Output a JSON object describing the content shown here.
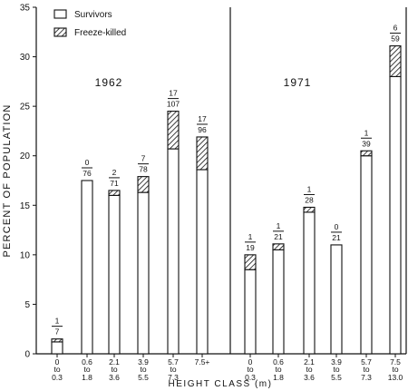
{
  "chart_data": {
    "type": "bar",
    "stacked": true,
    "xlabel": "HEIGHT CLASS (m)",
    "ylabel": "PERCENT OF POPULATION",
    "ylim": [
      0,
      35
    ],
    "yticks": [
      0,
      5,
      10,
      15,
      20,
      25,
      30,
      35
    ],
    "legend": {
      "placement": "top-left",
      "entries": [
        {
          "name": "Survivors",
          "pattern": "open"
        },
        {
          "name": "Freeze-killed",
          "pattern": "hatched"
        }
      ]
    },
    "panels": [
      {
        "title": "1962",
        "categories": [
          {
            "top": "0",
            "mid": "to",
            "bot": "0.3"
          },
          {
            "top": "0.6",
            "mid": "to",
            "bot": "1.8"
          },
          {
            "top": "2.1",
            "mid": "to",
            "bot": "3.6"
          },
          {
            "top": "3.9",
            "mid": "to",
            "bot": "5.5"
          },
          {
            "top": "5.7",
            "mid": "to",
            "bot": "7.3"
          },
          {
            "top": "7.5+",
            "mid": "",
            "bot": ""
          }
        ],
        "series": [
          {
            "name": "Survivors",
            "values": [
              1.2,
              17.5,
              16.0,
              16.3,
              20.7,
              18.6
            ]
          },
          {
            "name": "Freeze-killed",
            "values": [
              0.3,
              0.0,
              0.5,
              1.6,
              3.8,
              3.3
            ]
          }
        ],
        "labels": [
          {
            "num": "1",
            "den": "7"
          },
          {
            "num": "0",
            "den": "76"
          },
          {
            "num": "2",
            "den": "71"
          },
          {
            "num": "7",
            "den": "78"
          },
          {
            "num": "17",
            "den": "107"
          },
          {
            "num": "17",
            "den": "96"
          }
        ]
      },
      {
        "title": "1971",
        "categories": [
          {
            "top": "0",
            "mid": "to",
            "bot": "0.3"
          },
          {
            "top": "0.6",
            "mid": "to",
            "bot": "1.8"
          },
          {
            "top": "2.1",
            "mid": "to",
            "bot": "3.6"
          },
          {
            "top": "3.9",
            "mid": "to",
            "bot": "5.5"
          },
          {
            "top": "5.7",
            "mid": "to",
            "bot": "7.3"
          },
          {
            "top": "7.5",
            "mid": "to",
            "bot": "13.0"
          }
        ],
        "series": [
          {
            "name": "Survivors",
            "values": [
              8.5,
              10.5,
              14.3,
              11.0,
              20.0,
              28.0
            ]
          },
          {
            "name": "Freeze-killed",
            "values": [
              1.5,
              0.6,
              0.5,
              0.0,
              0.5,
              3.1
            ]
          }
        ],
        "labels": [
          {
            "num": "1",
            "den": "19"
          },
          {
            "num": "1",
            "den": "21"
          },
          {
            "num": "1",
            "den": "28"
          },
          {
            "num": "0",
            "den": "21"
          },
          {
            "num": "1",
            "den": "39"
          },
          {
            "num": "6",
            "den": "59"
          }
        ]
      }
    ]
  }
}
